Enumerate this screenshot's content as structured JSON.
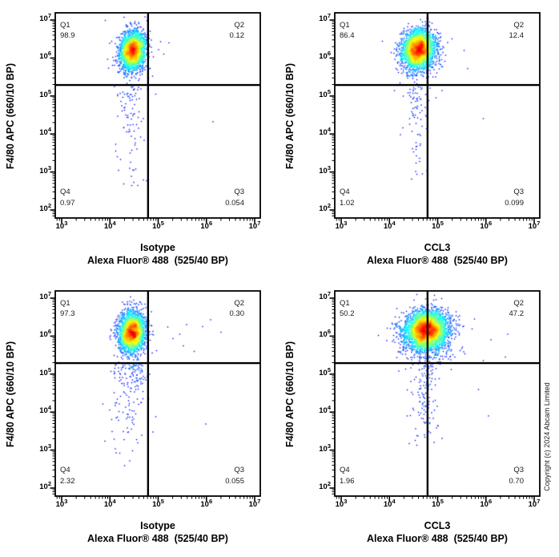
{
  "page": {
    "background": "#ffffff",
    "copyright_text": "Copyright (c) 2024 Abcam Limited"
  },
  "style": {
    "axis_color": "#000000",
    "gate_color": "#000000",
    "quadrant_text_color": "#1a1a1a",
    "density_colormap": "jet"
  },
  "chart_data": [
    {
      "id": "isotype-rep1",
      "type": "scatter",
      "x_label_line1": "Isotype",
      "x_label_line2": "Alexa Fluor® 488  (525/40 BP)",
      "y_label": "F4/80 APC (660/10 BP)",
      "x_log_range": [
        2.867,
        7.116
      ],
      "y_log_range": [
        1.789,
        7.19
      ],
      "x_tick_exponents": [
        3,
        4,
        5,
        6,
        7
      ],
      "y_tick_exponents": [
        2,
        3,
        4,
        5,
        6,
        7
      ],
      "gate_x_log": 4.79,
      "gate_y_log": 5.29,
      "quadrants": [
        {
          "name": "Q1",
          "value": "98.9"
        },
        {
          "name": "Q2",
          "value": "0.12"
        },
        {
          "name": "Q3",
          "value": "0.054"
        },
        {
          "name": "Q4",
          "value": "0.97"
        }
      ],
      "seed": 11,
      "populations": [
        {
          "kind": "gauss",
          "n": 2800,
          "cx": 4.47,
          "cy": 6.2,
          "sx": 0.125,
          "sy": 0.24,
          "corr": 0.12
        },
        {
          "kind": "gauss",
          "n": 170,
          "cx": 4.47,
          "cy": 6.08,
          "sx": 0.19,
          "sy": 0.36,
          "corr": 0.0
        },
        {
          "kind": "tail",
          "n": 90,
          "cx": 4.44,
          "sx": 0.14,
          "y_min": 2.45,
          "y_max": 5.26
        }
      ],
      "extra_points": [
        [
          5.05,
          6.43
        ],
        [
          5.22,
          6.4
        ],
        [
          5.12,
          6.1
        ],
        [
          6.14,
          4.32
        ],
        [
          4.95,
          5.05
        ]
      ]
    },
    {
      "id": "ccl3-rep1",
      "type": "scatter",
      "x_label_line1": "CCL3",
      "x_label_line2": "Alexa Fluor® 488  (525/40 BP)",
      "y_label": "F4/80 APC (660/10 BP)",
      "x_log_range": [
        2.867,
        7.116
      ],
      "y_log_range": [
        1.789,
        7.19
      ],
      "x_tick_exponents": [
        3,
        4,
        5,
        6,
        7
      ],
      "y_tick_exponents": [
        2,
        3,
        4,
        5,
        6,
        7
      ],
      "gate_x_log": 4.79,
      "gate_y_log": 5.29,
      "quadrants": [
        {
          "name": "Q1",
          "value": "86.4"
        },
        {
          "name": "Q2",
          "value": "12.4"
        },
        {
          "name": "Q3",
          "value": "0.099"
        },
        {
          "name": "Q4",
          "value": "1.02"
        }
      ],
      "seed": 23,
      "populations": [
        {
          "kind": "gauss",
          "n": 3200,
          "cx": 4.6,
          "cy": 6.22,
          "sx": 0.16,
          "sy": 0.24,
          "corr": 0.1
        },
        {
          "kind": "gauss",
          "n": 200,
          "cx": 4.6,
          "cy": 6.08,
          "sx": 0.22,
          "sy": 0.37,
          "corr": 0.0
        },
        {
          "kind": "tail",
          "n": 80,
          "cx": 4.56,
          "sx": 0.12,
          "y_min": 2.5,
          "y_max": 5.26
        }
      ],
      "extra_points": [
        [
          5.3,
          6.5
        ],
        [
          5.62,
          5.72
        ],
        [
          4.97,
          4.95
        ],
        [
          5.09,
          5.14
        ],
        [
          5.95,
          4.4
        ],
        [
          5.55,
          6.2
        ]
      ]
    },
    {
      "id": "isotype-rep2",
      "type": "scatter",
      "x_label_line1": "Isotype",
      "x_label_line2": "Alexa Fluor® 488  (525/40 BP)",
      "y_label": "F4/80 APC (660/10 BP)",
      "x_log_range": [
        2.867,
        7.116
      ],
      "y_log_range": [
        1.789,
        7.19
      ],
      "x_tick_exponents": [
        3,
        4,
        5,
        6,
        7
      ],
      "y_tick_exponents": [
        2,
        3,
        4,
        5,
        6,
        7
      ],
      "gate_x_log": 4.79,
      "gate_y_log": 5.29,
      "quadrants": [
        {
          "name": "Q1",
          "value": "97.3"
        },
        {
          "name": "Q2",
          "value": "0.30"
        },
        {
          "name": "Q3",
          "value": "0.055"
        },
        {
          "name": "Q4",
          "value": "2.32"
        }
      ],
      "seed": 37,
      "populations": [
        {
          "kind": "gauss",
          "n": 2800,
          "cx": 4.46,
          "cy": 6.1,
          "sx": 0.13,
          "sy": 0.25,
          "corr": 0.12
        },
        {
          "kind": "gauss",
          "n": 200,
          "cx": 4.44,
          "cy": 6.0,
          "sx": 0.2,
          "sy": 0.4,
          "corr": 0.0
        },
        {
          "kind": "tail",
          "n": 130,
          "cx": 4.38,
          "sx": 0.24,
          "y_min": 2.55,
          "y_max": 5.26
        },
        {
          "kind": "tail",
          "n": 40,
          "cx": 4.52,
          "sx": 0.1,
          "y_min": 4.5,
          "y_max": 5.28
        }
      ],
      "extra_points": [
        [
          5.2,
          6.24
        ],
        [
          5.59,
          6.3
        ],
        [
          5.92,
          6.25
        ],
        [
          5.31,
          5.93
        ],
        [
          5.52,
          5.75
        ],
        [
          6.09,
          6.43
        ],
        [
          5.99,
          3.69
        ],
        [
          5.45,
          6.05
        ],
        [
          5.75,
          5.6
        ],
        [
          6.3,
          6.1
        ]
      ]
    },
    {
      "id": "ccl3-rep2",
      "type": "scatter",
      "x_label_line1": "CCL3",
      "x_label_line2": "Alexa Fluor® 488  (525/40 BP)",
      "y_label": "F4/80 APC (660/10 BP)",
      "x_log_range": [
        2.867,
        7.116
      ],
      "y_log_range": [
        1.789,
        7.19
      ],
      "x_tick_exponents": [
        3,
        4,
        5,
        6,
        7
      ],
      "y_tick_exponents": [
        2,
        3,
        4,
        5,
        6,
        7
      ],
      "gate_x_log": 4.79,
      "gate_y_log": 5.29,
      "quadrants": [
        {
          "name": "Q1",
          "value": "50.2"
        },
        {
          "name": "Q2",
          "value": "47.2"
        },
        {
          "name": "Q3",
          "value": "0.70"
        },
        {
          "name": "Q4",
          "value": "1.96"
        }
      ],
      "seed": 53,
      "populations": [
        {
          "kind": "gauss",
          "n": 4200,
          "cx": 4.77,
          "cy": 6.16,
          "sx": 0.2,
          "sy": 0.24,
          "corr": 0.05
        },
        {
          "kind": "gauss",
          "n": 600,
          "cx": 4.78,
          "cy": 6.05,
          "sx": 0.3,
          "sy": 0.36,
          "corr": 0.0
        },
        {
          "kind": "tail",
          "n": 120,
          "cx": 4.72,
          "sx": 0.17,
          "y_min": 2.55,
          "y_max": 5.26
        }
      ],
      "extra_points": [
        [
          5.71,
          6.19
        ],
        [
          5.76,
          6.45
        ],
        [
          6.1,
          5.9
        ],
        [
          5.95,
          5.35
        ],
        [
          6.4,
          5.45
        ],
        [
          5.85,
          4.6
        ],
        [
          6.05,
          3.9
        ],
        [
          6.45,
          6.05
        ]
      ]
    }
  ]
}
